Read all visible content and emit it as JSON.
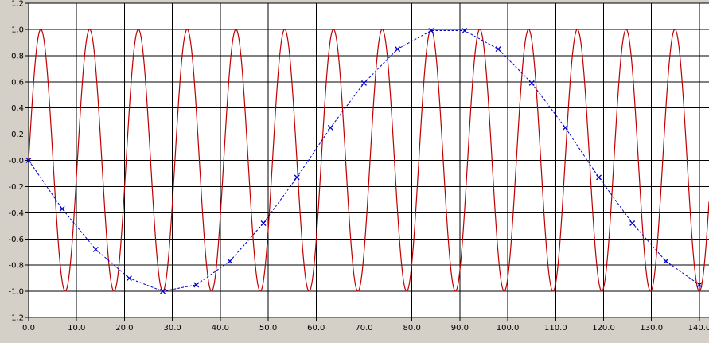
{
  "chart_data": {
    "type": "line",
    "title": "",
    "xlabel": "",
    "ylabel": "",
    "xlim": [
      0,
      142
    ],
    "ylim": [
      -1.2,
      1.2
    ],
    "x_ticks": [
      "0.0",
      "10.0",
      "20.0",
      "30.0",
      "40.0",
      "50.0",
      "60.0",
      "70.0",
      "80.0",
      "90.0",
      "100.0",
      "110.0",
      "120.0",
      "130.0",
      "140.0"
    ],
    "y_ticks": [
      "1.2",
      "1.0",
      "0.8",
      "0.6",
      "0.4",
      "0.2",
      "-0.0",
      "-0.2",
      "-0.4",
      "-0.6",
      "-0.8",
      "-1.0",
      "-1.2"
    ],
    "grid": true,
    "series": [
      {
        "style": "solid",
        "color": "#c00000",
        "function": "sin",
        "amplitude": 1.0,
        "period": 10.18,
        "x_start": 0,
        "x_end": 142
      },
      {
        "style": "dashed",
        "marker": "x",
        "color": "#0000cc",
        "x": [
          0,
          7,
          14,
          21,
          28,
          35,
          42,
          49,
          56,
          63,
          70,
          77,
          84,
          91,
          98,
          105,
          112,
          119,
          126,
          133,
          140
        ],
        "y": [
          0.0,
          -0.37,
          -0.68,
          -0.9,
          -1.0,
          -0.95,
          -0.77,
          -0.48,
          -0.13,
          0.25,
          0.59,
          0.85,
          0.99,
          0.99,
          0.85,
          0.59,
          0.25,
          -0.13,
          -0.48,
          -0.77,
          -0.95
        ]
      }
    ]
  }
}
